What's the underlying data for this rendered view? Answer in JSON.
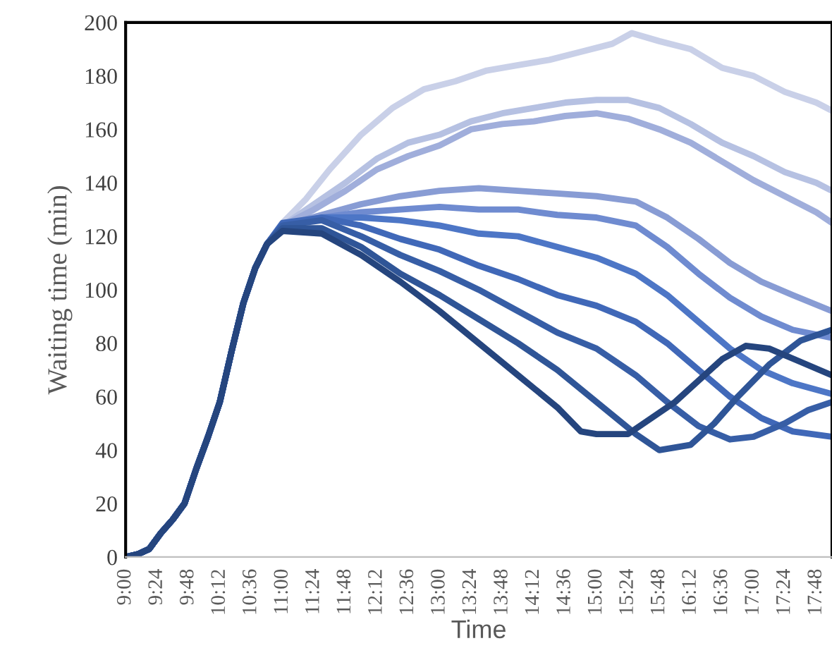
{
  "chart_data": {
    "type": "line",
    "xlabel": "Time",
    "ylabel": "Waiting time (min)",
    "xlim": [
      9,
      18
    ],
    "ylim": [
      0,
      200
    ],
    "xticks": [
      {
        "value": 9,
        "label": "9:00"
      },
      {
        "value": 9.4,
        "label": "9:24"
      },
      {
        "value": 9.8,
        "label": "9:48"
      },
      {
        "value": 10.2,
        "label": "10:12"
      },
      {
        "value": 10.6,
        "label": "10:36"
      },
      {
        "value": 11,
        "label": "11:00"
      },
      {
        "value": 11.4,
        "label": "11:24"
      },
      {
        "value": 11.8,
        "label": "11:48"
      },
      {
        "value": 12.2,
        "label": "12:12"
      },
      {
        "value": 12.6,
        "label": "12:36"
      },
      {
        "value": 13,
        "label": "13:00"
      },
      {
        "value": 13.4,
        "label": "13:24"
      },
      {
        "value": 13.8,
        "label": "13:48"
      },
      {
        "value": 14.2,
        "label": "14:12"
      },
      {
        "value": 14.6,
        "label": "14:36"
      },
      {
        "value": 15,
        "label": "15:00"
      },
      {
        "value": 15.4,
        "label": "15:24"
      },
      {
        "value": 15.8,
        "label": "15:48"
      },
      {
        "value": 16.2,
        "label": "16:12"
      },
      {
        "value": 16.6,
        "label": "16:36"
      },
      {
        "value": 17,
        "label": "17:00"
      },
      {
        "value": 17.4,
        "label": "17:24"
      },
      {
        "value": 17.8,
        "label": "17:48"
      }
    ],
    "yticks": [
      0,
      20,
      40,
      60,
      80,
      100,
      120,
      140,
      160,
      180,
      200
    ],
    "grid": false,
    "marker": "none",
    "line_style": "solid",
    "series": [
      {
        "color": "#c9d0e8",
        "x": [
          9.0,
          9.15,
          9.3,
          9.45,
          9.6,
          9.75,
          9.9,
          10.05,
          10.2,
          10.35,
          10.5,
          10.65,
          10.8,
          11.0,
          11.3,
          11.6,
          12.0,
          12.4,
          12.8,
          13.2,
          13.6,
          14.0,
          14.4,
          14.8,
          15.2,
          15.45,
          15.8,
          16.2,
          16.6,
          17.0,
          17.4,
          17.8,
          18.0
        ],
        "values": [
          0,
          1,
          3,
          9,
          14,
          20,
          33,
          45,
          58,
          77,
          95,
          108,
          117,
          125,
          134,
          145,
          158,
          168,
          175,
          178,
          182,
          184,
          186,
          189,
          192,
          196,
          193,
          190,
          183,
          180,
          174,
          170,
          167
        ]
      },
      {
        "color": "#b6c1e2",
        "x": [
          9.0,
          9.15,
          9.3,
          9.45,
          9.6,
          9.75,
          9.9,
          10.05,
          10.2,
          10.35,
          10.5,
          10.65,
          10.8,
          11.0,
          11.4,
          11.8,
          12.2,
          12.6,
          13.0,
          13.4,
          13.8,
          14.2,
          14.6,
          15.0,
          15.4,
          15.8,
          16.2,
          16.6,
          17.0,
          17.4,
          17.8,
          18.0
        ],
        "values": [
          0,
          1,
          3,
          9,
          14,
          20,
          33,
          45,
          58,
          77,
          95,
          108,
          117,
          124,
          132,
          140,
          149,
          155,
          158,
          163,
          166,
          168,
          170,
          171,
          171,
          168,
          162,
          155,
          150,
          144,
          140,
          137
        ]
      },
      {
        "color": "#a0aedb",
        "x": [
          9.0,
          9.15,
          9.3,
          9.45,
          9.6,
          9.75,
          9.9,
          10.05,
          10.2,
          10.35,
          10.5,
          10.65,
          10.8,
          11.0,
          11.4,
          11.8,
          12.2,
          12.6,
          13.0,
          13.4,
          13.8,
          14.2,
          14.6,
          15.0,
          15.4,
          15.8,
          16.2,
          16.6,
          17.0,
          17.4,
          17.8,
          18.0
        ],
        "values": [
          0,
          1,
          3,
          9,
          14,
          20,
          33,
          45,
          58,
          77,
          95,
          108,
          117,
          124,
          130,
          137,
          145,
          150,
          154,
          160,
          162,
          163,
          165,
          166,
          164,
          160,
          155,
          148,
          141,
          135,
          129,
          125
        ]
      },
      {
        "color": "#889cd4",
        "x": [
          9.0,
          9.15,
          9.3,
          9.45,
          9.6,
          9.75,
          9.9,
          10.05,
          10.2,
          10.35,
          10.5,
          10.65,
          10.8,
          11.0,
          11.5,
          12.0,
          12.5,
          13.0,
          13.5,
          14.0,
          14.5,
          15.0,
          15.5,
          15.9,
          16.3,
          16.7,
          17.1,
          17.5,
          18.0
        ],
        "values": [
          0,
          1,
          3,
          9,
          14,
          20,
          33,
          45,
          58,
          77,
          95,
          108,
          117,
          124,
          128,
          132,
          135,
          137,
          138,
          137,
          136,
          135,
          133,
          127,
          119,
          110,
          103,
          98,
          92
        ]
      },
      {
        "color": "#6f8bd0",
        "x": [
          9.0,
          9.15,
          9.3,
          9.45,
          9.6,
          9.75,
          9.9,
          10.05,
          10.2,
          10.35,
          10.5,
          10.65,
          10.8,
          11.0,
          11.5,
          12.0,
          12.5,
          13.0,
          13.5,
          14.0,
          14.5,
          15.0,
          15.5,
          15.9,
          16.3,
          16.7,
          17.1,
          17.5,
          18.0
        ],
        "values": [
          0,
          1,
          3,
          9,
          14,
          20,
          33,
          45,
          58,
          77,
          95,
          108,
          117,
          124,
          127,
          129,
          130,
          131,
          130,
          130,
          128,
          127,
          124,
          116,
          106,
          97,
          90,
          85,
          82
        ]
      },
      {
        "color": "#4d76c6",
        "x": [
          9.0,
          9.15,
          9.3,
          9.45,
          9.6,
          9.75,
          9.9,
          10.05,
          10.2,
          10.35,
          10.5,
          10.65,
          10.8,
          11.0,
          11.5,
          12.0,
          12.5,
          13.0,
          13.5,
          14.0,
          14.5,
          15.0,
          15.5,
          15.9,
          16.3,
          16.7,
          17.1,
          17.5,
          18.0
        ],
        "values": [
          0,
          1,
          3,
          9,
          14,
          20,
          33,
          45,
          58,
          77,
          95,
          108,
          117,
          124,
          127,
          127,
          126,
          124,
          121,
          120,
          116,
          112,
          106,
          98,
          88,
          78,
          70,
          65,
          61
        ]
      },
      {
        "color": "#4068b8",
        "x": [
          9.0,
          9.15,
          9.3,
          9.45,
          9.6,
          9.75,
          9.9,
          10.05,
          10.2,
          10.35,
          10.5,
          10.65,
          10.8,
          11.0,
          11.5,
          12.0,
          12.5,
          13.0,
          13.5,
          14.0,
          14.5,
          15.0,
          15.5,
          15.9,
          16.3,
          16.7,
          17.1,
          17.5,
          18.0
        ],
        "values": [
          0,
          1,
          3,
          9,
          14,
          20,
          33,
          45,
          58,
          77,
          95,
          108,
          117,
          125,
          127,
          124,
          119,
          115,
          109,
          104,
          98,
          94,
          88,
          80,
          70,
          60,
          52,
          47,
          45
        ]
      },
      {
        "color": "#375ea6",
        "x": [
          9.0,
          9.15,
          9.3,
          9.45,
          9.6,
          9.75,
          9.9,
          10.05,
          10.2,
          10.35,
          10.5,
          10.65,
          10.8,
          11.0,
          11.5,
          12.0,
          12.5,
          13.0,
          13.5,
          14.0,
          14.5,
          15.0,
          15.5,
          15.9,
          16.3,
          16.7,
          17.0,
          17.4,
          17.7,
          18.0
        ],
        "values": [
          0,
          1,
          3,
          9,
          14,
          20,
          33,
          45,
          58,
          77,
          95,
          108,
          117,
          124,
          126,
          120,
          113,
          107,
          100,
          92,
          84,
          78,
          68,
          58,
          49,
          44,
          45,
          50,
          55,
          58
        ]
      },
      {
        "color": "#2f5597",
        "x": [
          9.0,
          9.15,
          9.3,
          9.45,
          9.6,
          9.75,
          9.9,
          10.05,
          10.2,
          10.35,
          10.5,
          10.65,
          10.8,
          11.0,
          11.5,
          12.0,
          12.5,
          13.0,
          13.5,
          14.0,
          14.5,
          15.0,
          15.5,
          15.8,
          16.2,
          16.5,
          16.8,
          17.2,
          17.6,
          18.0
        ],
        "values": [
          0,
          1,
          3,
          9,
          14,
          20,
          33,
          45,
          58,
          77,
          95,
          108,
          117,
          123,
          123,
          116,
          106,
          98,
          89,
          80,
          70,
          58,
          46,
          40,
          42,
          50,
          60,
          72,
          81,
          85
        ]
      },
      {
        "color": "#25457e",
        "x": [
          9.0,
          9.15,
          9.3,
          9.45,
          9.6,
          9.75,
          9.9,
          10.05,
          10.2,
          10.35,
          10.5,
          10.65,
          10.8,
          11.0,
          11.5,
          12.0,
          12.5,
          13.0,
          13.5,
          14.0,
          14.5,
          14.8,
          15.0,
          15.4,
          15.7,
          16.0,
          16.3,
          16.6,
          16.9,
          17.2,
          17.6,
          18.0
        ],
        "values": [
          0,
          1,
          3,
          9,
          14,
          20,
          33,
          45,
          58,
          77,
          95,
          108,
          117,
          122,
          121,
          113,
          103,
          92,
          80,
          68,
          56,
          47,
          46,
          46,
          52,
          58,
          66,
          74,
          79,
          78,
          73,
          68
        ]
      }
    ]
  }
}
